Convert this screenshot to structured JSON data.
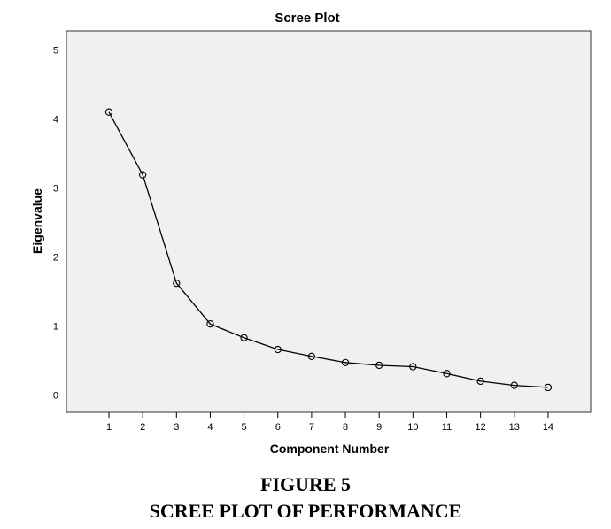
{
  "chart_data": {
    "type": "line",
    "title": "Scree Plot",
    "xlabel": "Component Number",
    "ylabel": "Eigenvalue",
    "x": [
      1,
      2,
      3,
      4,
      5,
      6,
      7,
      8,
      9,
      10,
      11,
      12,
      13,
      14
    ],
    "values": [
      4.1,
      3.19,
      1.62,
      1.03,
      0.83,
      0.66,
      0.56,
      0.47,
      0.43,
      0.41,
      0.31,
      0.2,
      0.14,
      0.11
    ],
    "xticks": [
      "1",
      "2",
      "3",
      "4",
      "5",
      "6",
      "7",
      "8",
      "9",
      "10",
      "11",
      "12",
      "13",
      "14"
    ],
    "yticks": [
      "0",
      "1",
      "2",
      "3",
      "4",
      "5"
    ],
    "ylim": [
      0,
      5
    ],
    "grid": false,
    "marker": "open-circle",
    "plot_background": "#f0f0f0",
    "line_color": "#000000"
  },
  "caption": {
    "line1": "FIGURE 5",
    "line2": "SCREE PLOT OF PERFORMANCE"
  }
}
